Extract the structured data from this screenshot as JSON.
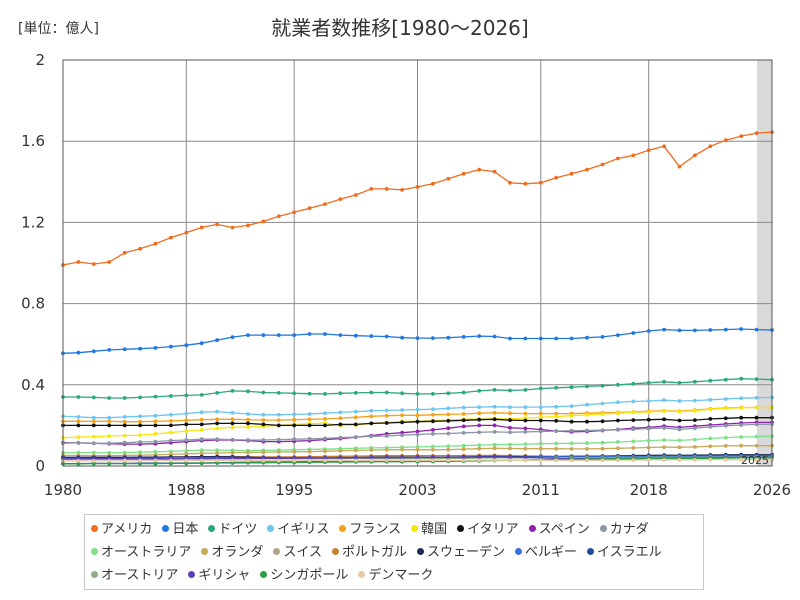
{
  "chart_data": {
    "type": "line",
    "title": "就業者数推移[1980〜2026]",
    "unit_label": "[単位：億人]",
    "x_tick_labels": [
      "1980",
      "1988",
      "1995",
      "2003",
      "2011",
      "2018",
      "2026"
    ],
    "y_tick_labels": [
      "0",
      "0.4",
      "0.8",
      "1.2",
      "1.6",
      "2"
    ],
    "x_range": [
      1980,
      2026
    ],
    "y_range": [
      0,
      2
    ],
    "forecast_start": 2025,
    "forecast_label": "2025",
    "years": [
      1980,
      1981,
      1982,
      1983,
      1984,
      1985,
      1986,
      1987,
      1988,
      1989,
      1990,
      1991,
      1992,
      1993,
      1994,
      1995,
      1996,
      1997,
      1998,
      1999,
      2000,
      2001,
      2002,
      2003,
      2004,
      2005,
      2006,
      2007,
      2008,
      2009,
      2010,
      2011,
      2012,
      2013,
      2014,
      2015,
      2016,
      2017,
      2018,
      2019,
      2020,
      2021,
      2022,
      2023,
      2024,
      2025,
      2026
    ],
    "series": [
      {
        "name": "アメリカ",
        "color": "#f06c1e",
        "values": [
          0.99,
          1.005,
          0.995,
          1.005,
          1.05,
          1.07,
          1.095,
          1.125,
          1.15,
          1.175,
          1.19,
          1.175,
          1.185,
          1.205,
          1.23,
          1.25,
          1.27,
          1.29,
          1.315,
          1.335,
          1.365,
          1.365,
          1.36,
          1.375,
          1.39,
          1.415,
          1.44,
          1.46,
          1.45,
          1.395,
          1.39,
          1.395,
          1.42,
          1.44,
          1.46,
          1.485,
          1.515,
          1.53,
          1.555,
          1.575,
          1.475,
          1.53,
          1.575,
          1.605,
          1.625,
          1.64,
          1.645
        ]
      },
      {
        "name": "日本",
        "color": "#1f77e0",
        "values": [
          0.555,
          0.558,
          0.565,
          0.572,
          0.575,
          0.578,
          0.582,
          0.588,
          0.595,
          0.605,
          0.62,
          0.635,
          0.645,
          0.645,
          0.645,
          0.645,
          0.65,
          0.65,
          0.645,
          0.642,
          0.64,
          0.638,
          0.632,
          0.63,
          0.63,
          0.632,
          0.636,
          0.64,
          0.638,
          0.628,
          0.628,
          0.628,
          0.628,
          0.628,
          0.632,
          0.636,
          0.645,
          0.655,
          0.665,
          0.672,
          0.668,
          0.668,
          0.67,
          0.672,
          0.675,
          0.672,
          0.67
        ]
      },
      {
        "name": "ドイツ",
        "color": "#2ca87f",
        "values": [
          0.34,
          0.34,
          0.338,
          0.335,
          0.335,
          0.338,
          0.342,
          0.345,
          0.348,
          0.35,
          0.36,
          0.37,
          0.368,
          0.362,
          0.36,
          0.358,
          0.356,
          0.355,
          0.358,
          0.36,
          0.362,
          0.362,
          0.358,
          0.355,
          0.355,
          0.358,
          0.362,
          0.37,
          0.375,
          0.372,
          0.375,
          0.382,
          0.385,
          0.388,
          0.392,
          0.395,
          0.4,
          0.405,
          0.41,
          0.415,
          0.41,
          0.415,
          0.42,
          0.425,
          0.43,
          0.428,
          0.425
        ]
      },
      {
        "name": "イギリス",
        "color": "#6ec6f0",
        "values": [
          0.245,
          0.242,
          0.238,
          0.238,
          0.242,
          0.245,
          0.248,
          0.252,
          0.258,
          0.265,
          0.268,
          0.262,
          0.256,
          0.252,
          0.252,
          0.254,
          0.256,
          0.26,
          0.264,
          0.268,
          0.272,
          0.274,
          0.276,
          0.278,
          0.28,
          0.284,
          0.288,
          0.29,
          0.292,
          0.29,
          0.29,
          0.29,
          0.292,
          0.295,
          0.302,
          0.308,
          0.314,
          0.318,
          0.32,
          0.324,
          0.32,
          0.322,
          0.326,
          0.33,
          0.334,
          0.336,
          0.338
        ]
      },
      {
        "name": "フランス",
        "color": "#f4a21b",
        "values": [
          0.22,
          0.22,
          0.22,
          0.22,
          0.218,
          0.218,
          0.22,
          0.222,
          0.225,
          0.228,
          0.23,
          0.23,
          0.228,
          0.226,
          0.226,
          0.228,
          0.23,
          0.232,
          0.236,
          0.24,
          0.245,
          0.248,
          0.25,
          0.25,
          0.252,
          0.254,
          0.256,
          0.26,
          0.262,
          0.26,
          0.258,
          0.258,
          0.258,
          0.258,
          0.26,
          0.262,
          0.264,
          0.266,
          0.27,
          0.272,
          0.27,
          0.275,
          0.282,
          0.286,
          0.288,
          0.288,
          0.288
        ]
      },
      {
        "name": "韓国",
        "color": "#f7e60f",
        "values": [
          0.14,
          0.142,
          0.145,
          0.148,
          0.15,
          0.152,
          0.158,
          0.165,
          0.172,
          0.178,
          0.185,
          0.19,
          0.192,
          0.195,
          0.2,
          0.205,
          0.208,
          0.212,
          0.198,
          0.202,
          0.21,
          0.214,
          0.22,
          0.22,
          0.224,
          0.226,
          0.23,
          0.232,
          0.234,
          0.232,
          0.236,
          0.24,
          0.244,
          0.248,
          0.252,
          0.256,
          0.26,
          0.264,
          0.266,
          0.27,
          0.268,
          0.272,
          0.28,
          0.284,
          0.286,
          0.288,
          0.288
        ]
      },
      {
        "name": "イタリア",
        "color": "#111111",
        "values": [
          0.2,
          0.2,
          0.2,
          0.2,
          0.2,
          0.2,
          0.2,
          0.2,
          0.205,
          0.205,
          0.21,
          0.21,
          0.21,
          0.205,
          0.2,
          0.2,
          0.2,
          0.2,
          0.205,
          0.205,
          0.21,
          0.212,
          0.215,
          0.218,
          0.22,
          0.222,
          0.225,
          0.228,
          0.23,
          0.226,
          0.224,
          0.224,
          0.222,
          0.218,
          0.218,
          0.22,
          0.224,
          0.226,
          0.228,
          0.23,
          0.224,
          0.226,
          0.232,
          0.235,
          0.238,
          0.238,
          0.238
        ]
      },
      {
        "name": "スペイン",
        "color": "#8e24aa",
        "values": [
          0.115,
          0.114,
          0.112,
          0.11,
          0.108,
          0.108,
          0.11,
          0.115,
          0.12,
          0.125,
          0.128,
          0.128,
          0.125,
          0.12,
          0.12,
          0.122,
          0.125,
          0.13,
          0.135,
          0.142,
          0.15,
          0.158,
          0.164,
          0.17,
          0.178,
          0.186,
          0.195,
          0.2,
          0.2,
          0.188,
          0.185,
          0.18,
          0.172,
          0.168,
          0.17,
          0.175,
          0.18,
          0.186,
          0.19,
          0.196,
          0.19,
          0.196,
          0.202,
          0.207,
          0.212,
          0.215,
          0.215
        ]
      },
      {
        "name": "カナダ",
        "color": "#8a96a6",
        "values": [
          0.112,
          0.115,
          0.112,
          0.112,
          0.115,
          0.118,
          0.12,
          0.125,
          0.128,
          0.132,
          0.132,
          0.13,
          0.128,
          0.128,
          0.13,
          0.132,
          0.134,
          0.136,
          0.14,
          0.143,
          0.146,
          0.148,
          0.152,
          0.155,
          0.158,
          0.16,
          0.163,
          0.166,
          0.168,
          0.166,
          0.168,
          0.17,
          0.172,
          0.174,
          0.175,
          0.177,
          0.178,
          0.181,
          0.184,
          0.187,
          0.18,
          0.186,
          0.193,
          0.198,
          0.202,
          0.205,
          0.206
        ]
      },
      {
        "name": "オーストラリア",
        "color": "#7ee08a",
        "values": [
          0.065,
          0.066,
          0.066,
          0.065,
          0.066,
          0.068,
          0.07,
          0.072,
          0.075,
          0.078,
          0.078,
          0.077,
          0.076,
          0.077,
          0.078,
          0.08,
          0.082,
          0.083,
          0.085,
          0.087,
          0.089,
          0.09,
          0.092,
          0.094,
          0.096,
          0.098,
          0.1,
          0.103,
          0.105,
          0.106,
          0.108,
          0.11,
          0.111,
          0.112,
          0.113,
          0.115,
          0.118,
          0.121,
          0.125,
          0.128,
          0.126,
          0.13,
          0.136,
          0.14,
          0.143,
          0.145,
          0.147
        ]
      },
      {
        "name": "オランダ",
        "color": "#c9a957",
        "values": [
          0.052,
          0.052,
          0.051,
          0.051,
          0.052,
          0.053,
          0.055,
          0.057,
          0.06,
          0.062,
          0.064,
          0.066,
          0.067,
          0.068,
          0.069,
          0.07,
          0.071,
          0.073,
          0.075,
          0.077,
          0.079,
          0.08,
          0.081,
          0.08,
          0.08,
          0.081,
          0.083,
          0.085,
          0.087,
          0.086,
          0.085,
          0.085,
          0.085,
          0.084,
          0.084,
          0.085,
          0.087,
          0.089,
          0.091,
          0.093,
          0.092,
          0.094,
          0.097,
          0.099,
          0.1,
          0.1,
          0.1
        ]
      },
      {
        "name": "スイス",
        "color": "#b0a58a",
        "values": [
          0.032,
          0.032,
          0.032,
          0.033,
          0.033,
          0.034,
          0.034,
          0.035,
          0.036,
          0.037,
          0.038,
          0.038,
          0.038,
          0.038,
          0.038,
          0.038,
          0.038,
          0.038,
          0.039,
          0.039,
          0.04,
          0.041,
          0.041,
          0.041,
          0.041,
          0.042,
          0.042,
          0.043,
          0.044,
          0.044,
          0.045,
          0.046,
          0.047,
          0.048,
          0.049,
          0.049,
          0.05,
          0.05,
          0.051,
          0.052,
          0.052,
          0.052,
          0.053,
          0.054,
          0.055,
          0.055,
          0.055
        ]
      },
      {
        "name": "ポルトガル",
        "color": "#c47f3c",
        "values": [
          0.042,
          0.042,
          0.042,
          0.042,
          0.042,
          0.042,
          0.043,
          0.044,
          0.045,
          0.046,
          0.047,
          0.047,
          0.046,
          0.045,
          0.045,
          0.045,
          0.046,
          0.047,
          0.048,
          0.049,
          0.05,
          0.051,
          0.051,
          0.051,
          0.051,
          0.051,
          0.051,
          0.052,
          0.052,
          0.051,
          0.05,
          0.049,
          0.047,
          0.046,
          0.046,
          0.047,
          0.047,
          0.048,
          0.049,
          0.049,
          0.048,
          0.049,
          0.05,
          0.051,
          0.051,
          0.051,
          0.051
        ]
      },
      {
        "name": "スウェーデン",
        "color": "#1d2d57",
        "values": [
          0.043,
          0.043,
          0.043,
          0.043,
          0.043,
          0.044,
          0.044,
          0.045,
          0.045,
          0.046,
          0.046,
          0.045,
          0.043,
          0.041,
          0.04,
          0.04,
          0.04,
          0.04,
          0.041,
          0.042,
          0.043,
          0.044,
          0.044,
          0.044,
          0.044,
          0.044,
          0.045,
          0.046,
          0.047,
          0.046,
          0.046,
          0.047,
          0.047,
          0.048,
          0.048,
          0.049,
          0.05,
          0.051,
          0.052,
          0.053,
          0.052,
          0.053,
          0.054,
          0.055,
          0.055,
          0.055,
          0.055
        ]
      },
      {
        "name": "ベルギー",
        "color": "#3b6fe0",
        "values": [
          0.037,
          0.037,
          0.036,
          0.036,
          0.036,
          0.036,
          0.036,
          0.037,
          0.037,
          0.038,
          0.038,
          0.038,
          0.038,
          0.038,
          0.038,
          0.038,
          0.038,
          0.039,
          0.039,
          0.04,
          0.041,
          0.041,
          0.041,
          0.041,
          0.042,
          0.042,
          0.043,
          0.043,
          0.044,
          0.044,
          0.044,
          0.045,
          0.045,
          0.045,
          0.045,
          0.045,
          0.046,
          0.047,
          0.047,
          0.048,
          0.048,
          0.048,
          0.049,
          0.05,
          0.05,
          0.05,
          0.05
        ]
      },
      {
        "name": "イスラエル",
        "color": "#1e4f9c",
        "values": [
          0.012,
          0.012,
          0.013,
          0.013,
          0.013,
          0.014,
          0.014,
          0.014,
          0.015,
          0.015,
          0.016,
          0.017,
          0.018,
          0.019,
          0.02,
          0.021,
          0.021,
          0.022,
          0.022,
          0.022,
          0.023,
          0.023,
          0.024,
          0.024,
          0.025,
          0.025,
          0.026,
          0.027,
          0.028,
          0.028,
          0.029,
          0.03,
          0.031,
          0.032,
          0.033,
          0.034,
          0.035,
          0.036,
          0.037,
          0.038,
          0.037,
          0.038,
          0.039,
          0.04,
          0.041,
          0.041,
          0.042
        ]
      },
      {
        "name": "オーストリア",
        "color": "#8fae86",
        "values": [
          0.033,
          0.033,
          0.033,
          0.033,
          0.033,
          0.033,
          0.033,
          0.033,
          0.034,
          0.034,
          0.035,
          0.035,
          0.036,
          0.036,
          0.036,
          0.036,
          0.036,
          0.036,
          0.036,
          0.037,
          0.037,
          0.037,
          0.037,
          0.037,
          0.037,
          0.038,
          0.038,
          0.039,
          0.04,
          0.04,
          0.04,
          0.041,
          0.041,
          0.041,
          0.041,
          0.041,
          0.042,
          0.042,
          0.043,
          0.043,
          0.043,
          0.043,
          0.044,
          0.044,
          0.044,
          0.044,
          0.044
        ]
      },
      {
        "name": "ギリシャ",
        "color": "#5b3fc0",
        "values": [
          0.035,
          0.035,
          0.036,
          0.036,
          0.036,
          0.036,
          0.036,
          0.036,
          0.037,
          0.037,
          0.038,
          0.037,
          0.038,
          0.038,
          0.038,
          0.038,
          0.039,
          0.039,
          0.04,
          0.04,
          0.04,
          0.041,
          0.041,
          0.042,
          0.043,
          0.043,
          0.044,
          0.044,
          0.045,
          0.044,
          0.043,
          0.04,
          0.037,
          0.036,
          0.036,
          0.037,
          0.037,
          0.038,
          0.038,
          0.039,
          0.039,
          0.039,
          0.04,
          0.041,
          0.041,
          0.041,
          0.041
        ]
      },
      {
        "name": "シンガポール",
        "color": "#2c9e47",
        "values": [
          0.011,
          0.011,
          0.012,
          0.012,
          0.012,
          0.012,
          0.012,
          0.013,
          0.013,
          0.014,
          0.015,
          0.015,
          0.016,
          0.016,
          0.017,
          0.017,
          0.018,
          0.019,
          0.019,
          0.02,
          0.021,
          0.021,
          0.021,
          0.022,
          0.022,
          0.023,
          0.024,
          0.025,
          0.027,
          0.028,
          0.029,
          0.031,
          0.032,
          0.033,
          0.034,
          0.035,
          0.036,
          0.036,
          0.037,
          0.038,
          0.037,
          0.037,
          0.038,
          0.039,
          0.04,
          0.04,
          0.04
        ]
      },
      {
        "name": "デンマーク",
        "color": "#e6c9a0",
        "values": [
          0.025,
          0.025,
          0.025,
          0.025,
          0.026,
          0.026,
          0.027,
          0.027,
          0.027,
          0.027,
          0.027,
          0.027,
          0.027,
          0.026,
          0.026,
          0.026,
          0.027,
          0.027,
          0.027,
          0.027,
          0.028,
          0.028,
          0.028,
          0.028,
          0.028,
          0.028,
          0.028,
          0.029,
          0.029,
          0.028,
          0.028,
          0.028,
          0.028,
          0.028,
          0.028,
          0.028,
          0.029,
          0.029,
          0.03,
          0.03,
          0.03,
          0.03,
          0.031,
          0.031,
          0.031,
          0.031,
          0.031
        ]
      }
    ]
  }
}
